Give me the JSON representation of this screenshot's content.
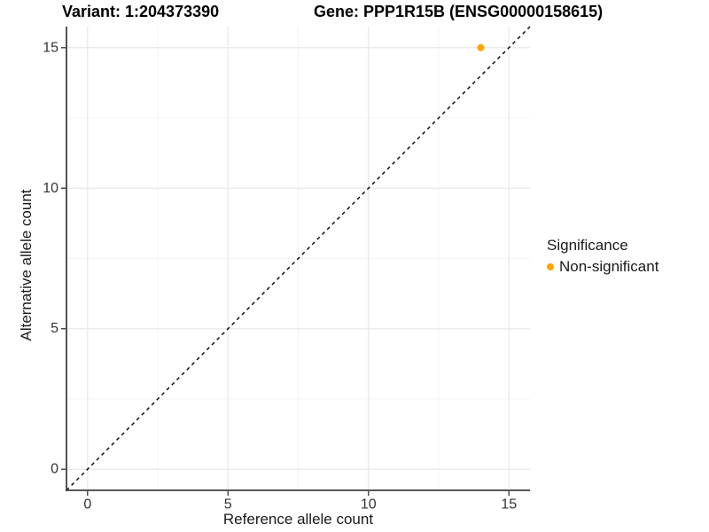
{
  "title": {
    "variant": "Variant: 1:204373390",
    "gene": "Gene: PPP1R15B (ENSG00000158615)"
  },
  "axes": {
    "x": {
      "label": "Reference allele count",
      "ticks": [
        0,
        5,
        10,
        15
      ],
      "minor_ticks": [
        2.5,
        7.5,
        12.5
      ],
      "range": [
        -0.75,
        15.75
      ]
    },
    "y": {
      "label": "Alternative allele count",
      "ticks": [
        0,
        5,
        10,
        15
      ],
      "minor_ticks": [
        2.5,
        7.5,
        12.5
      ],
      "range": [
        -0.75,
        15.75
      ]
    }
  },
  "legend": {
    "title": "Significance",
    "items": [
      {
        "label": "Non-significant",
        "color": "#FFA500"
      }
    ]
  },
  "chart_data": {
    "type": "scatter",
    "title": "Variant: 1:204373390 / Gene: PPP1R15B (ENSG00000158615)",
    "xlabel": "Reference allele count",
    "ylabel": "Alternative allele count",
    "xlim": [
      -0.75,
      15.75
    ],
    "ylim": [
      -0.75,
      15.75
    ],
    "grid": "major+minor",
    "legend_position": "right",
    "points": [
      {
        "x": 14,
        "y": 15,
        "series": "Non-significant",
        "color": "#FFA500"
      }
    ],
    "reference_line": {
      "type": "identity",
      "slope": 1,
      "intercept": 0,
      "style": "dashed",
      "color": "#000000"
    }
  },
  "colors": {
    "point_nonsignificant": "#FFA500",
    "grid_major": "#e8e8e8",
    "grid_minor": "#f4f4f4",
    "axis_line": "#404040",
    "tick_text": "#333333",
    "reference_line": "#000000",
    "background": "#ffffff"
  }
}
